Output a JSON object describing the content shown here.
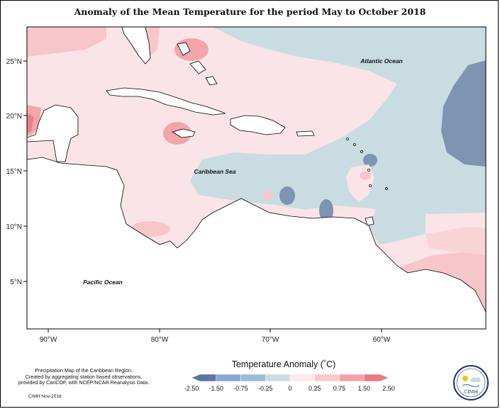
{
  "title": "Anomaly of the Mean Temperature for the period May to October 2018",
  "map": {
    "lon_ticks": [
      "90°W",
      "80°W",
      "70°W",
      "60°W"
    ],
    "lat_ticks": [
      "25°N",
      "20°N",
      "15°N",
      "10°N",
      "5°N"
    ],
    "labels": {
      "atlantic": "Atlantic Ocean",
      "caribbean": "Caribbean Sea",
      "pacific": "Pacific Ocean"
    }
  },
  "legend": {
    "title": "Temperature Anomaly (˚C)",
    "ticks": [
      "-2.50",
      "-1.50",
      "-0.75",
      "-0.25",
      "0",
      "0.25",
      "0.75",
      "1.50",
      "2.50"
    ],
    "colors": [
      "#5f73a4",
      "#8aa6d6",
      "#9bbcd2",
      "#c9dde3",
      "#fde9ec",
      "#f9c9cd",
      "#f2a2a8",
      "#eb7a80"
    ]
  },
  "credit": {
    "lines": [
      "Precipitation Map of the Caribbean Region.",
      "Created by aggregating station based observations,",
      "provided by CariCOF, with NCEP/NCAR Reanalysis Data."
    ],
    "stamp": "CIMH Nov-2018"
  },
  "logo": {
    "text": "CIMH"
  }
}
